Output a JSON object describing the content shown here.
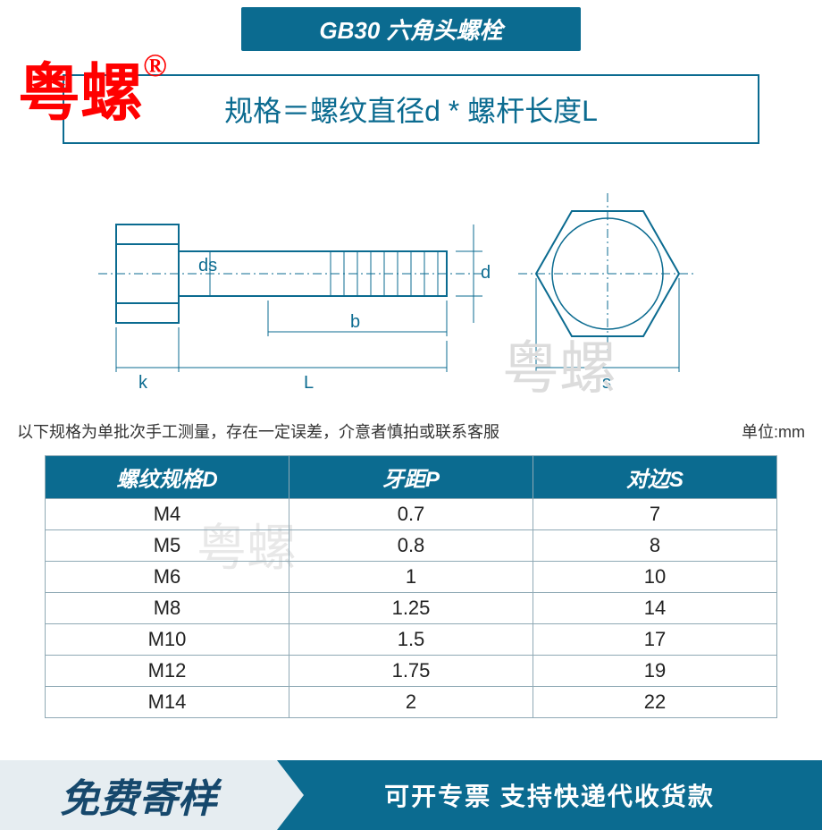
{
  "title": "GB30 六角头螺栓",
  "brand": {
    "text": "粤螺",
    "symbol": "®"
  },
  "formula": "规格＝螺纹直径d * 螺杆长度L",
  "diagram": {
    "stroke": "#0b6b90",
    "labels": {
      "ds": "ds",
      "d": "d",
      "b": "b",
      "k": "k",
      "L": "L",
      "s": "s"
    }
  },
  "watermark": "粤螺",
  "note": {
    "left": "以下规格为单批次手工测量，存在一定误差，介意者慎拍或联系客服",
    "right": "单位:mm"
  },
  "table": {
    "headers": [
      "螺纹规格D",
      "牙距P",
      "对边S"
    ],
    "rows": [
      [
        "M4",
        "0.7",
        "7"
      ],
      [
        "M5",
        "0.8",
        "8"
      ],
      [
        "M6",
        "1",
        "10"
      ],
      [
        "M8",
        "1.25",
        "14"
      ],
      [
        "M10",
        "1.5",
        "17"
      ],
      [
        "M12",
        "1.75",
        "19"
      ],
      [
        "M14",
        "2",
        "22"
      ]
    ],
    "header_bg": "#0b6b90",
    "border_color": "#8fa9b5"
  },
  "footer": {
    "left": "免费寄样",
    "right": "可开专票 支持快递代收货款",
    "left_bg": "#e6edf1",
    "right_bg": "#0b6b90"
  }
}
